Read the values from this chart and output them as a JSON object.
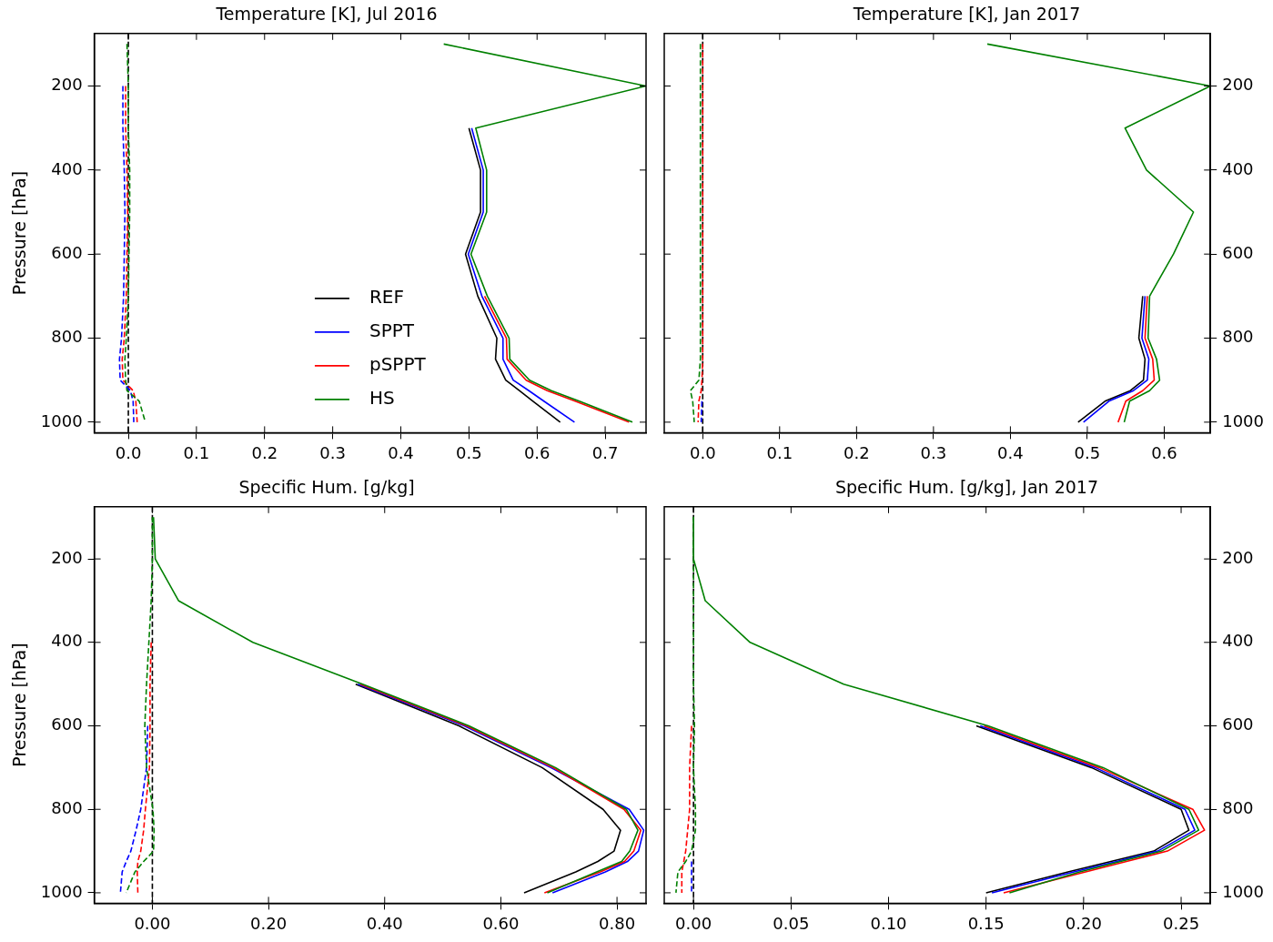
{
  "chart_data": [
    {
      "type": "line",
      "title": "Temperature [K], Jul 2016",
      "ylabel": "Pressure [hPa]",
      "xlim": [
        -0.05,
        0.76
      ],
      "xticks": [
        {
          "value": 0,
          "label": "0.0"
        },
        0.1,
        0.2,
        0.3,
        0.4,
        0.5,
        0.6,
        0.7
      ],
      "ylim": [
        1025,
        75
      ],
      "yticks": [
        200,
        400,
        600,
        800,
        1000
      ],
      "legend": "bottom",
      "ref_lines": [
        {
          "axis": "x",
          "value": 0,
          "color": "#000000",
          "line_style": "dashed"
        }
      ],
      "series": [
        {
          "name": "REF",
          "color": "#000000",
          "line_style": "solid",
          "x": [
            0.5,
            0.517,
            0.517,
            0.495,
            0.513,
            0.541,
            0.539,
            0.554,
            0.574,
            0.594,
            0.634
          ],
          "values": [
            300,
            400,
            500,
            600,
            700,
            800,
            850,
            900,
            925,
            950,
            1000
          ]
        },
        {
          "name": "SPPT",
          "color": "#0000ff",
          "line_style": "solid",
          "x": [
            0.504,
            0.521,
            0.521,
            0.499,
            0.519,
            0.55,
            0.55,
            0.565,
            0.588,
            0.61,
            0.655
          ],
          "values": [
            300,
            400,
            500,
            600,
            700,
            800,
            850,
            900,
            925,
            950,
            1000
          ]
        },
        {
          "name": "pSPPT",
          "color": "#ff0000",
          "line_style": "solid",
          "x": [
            0.523,
            0.555,
            0.556,
            0.584,
            0.615,
            0.656,
            0.735
          ],
          "values": [
            700,
            800,
            850,
            900,
            925,
            950,
            1000
          ]
        },
        {
          "name": "HS",
          "color": "#008000",
          "line_style": "solid",
          "x": [
            0.463,
            0.76,
            0.51,
            0.526,
            0.526,
            0.503,
            0.527,
            0.559,
            0.56,
            0.589,
            0.621,
            0.662,
            0.74
          ],
          "values": [
            100,
            200,
            300,
            400,
            500,
            600,
            700,
            800,
            850,
            900,
            925,
            950,
            1000
          ]
        },
        {
          "color": "#0000ff",
          "line_style": "dashed",
          "x": [
            -0.008,
            -0.008,
            -0.006,
            -0.005,
            -0.006,
            -0.007,
            -0.01,
            -0.013,
            -0.012,
            0.003,
            0.007,
            0.008
          ],
          "values": [
            200,
            300,
            400,
            500,
            600,
            700,
            800,
            850,
            900,
            925,
            950,
            1000
          ]
        },
        {
          "color": "#ff0000",
          "line_style": "dashed",
          "x": [
            -0.004,
            -0.004,
            -0.002,
            -0.001,
            -0.002,
            -0.003,
            -0.006,
            -0.009,
            -0.008,
            0.007,
            0.011,
            0.013
          ],
          "values": [
            200,
            300,
            400,
            500,
            600,
            700,
            800,
            850,
            900,
            925,
            950,
            1000
          ]
        },
        {
          "color": "#008000",
          "line_style": "dashed",
          "x": [
            -0.002,
            0,
            0,
            0.002,
            0.002,
            0.001,
            0,
            -0.003,
            -0.005,
            -0.004,
            -0.002,
            0.016,
            0.025
          ],
          "values": [
            100,
            200,
            300,
            400,
            500,
            600,
            700,
            800,
            850,
            900,
            925,
            950,
            1000
          ]
        }
      ]
    },
    {
      "type": "line",
      "title": "Temperature [K], Jan 2017",
      "xlim": [
        -0.05,
        0.66
      ],
      "xticks": [
        {
          "value": 0,
          "label": "0.0"
        },
        0.1,
        0.2,
        0.3,
        0.4,
        0.5,
        0.6
      ],
      "ylim": [
        1025,
        75
      ],
      "yticks": [
        200,
        400,
        600,
        800,
        1000
      ],
      "ref_lines": [
        {
          "axis": "x",
          "value": 0,
          "color": "#000000",
          "line_style": "dashed"
        }
      ],
      "series": [
        {
          "color": "#000000",
          "line_style": "solid",
          "x": [
            0.572,
            0.567,
            0.575,
            0.573,
            0.556,
            0.523,
            0.488
          ],
          "values": [
            700,
            800,
            850,
            900,
            925,
            950,
            1000
          ]
        },
        {
          "color": "#0000ff",
          "line_style": "solid",
          "x": [
            0.575,
            0.571,
            0.58,
            0.578,
            0.56,
            0.528,
            0.495
          ],
          "values": [
            700,
            800,
            850,
            900,
            925,
            950,
            1000
          ]
        },
        {
          "color": "#ff0000",
          "line_style": "solid",
          "x": [
            0.578,
            0.575,
            0.585,
            0.587,
            0.572,
            0.55,
            0.54
          ],
          "values": [
            700,
            800,
            850,
            900,
            925,
            950,
            1000
          ]
        },
        {
          "color": "#008000",
          "line_style": "solid",
          "x": [
            0.37,
            0.66,
            0.549,
            0.577,
            0.638,
            0.612,
            0.581,
            0.579,
            0.59,
            0.594,
            0.581,
            0.555,
            0.548
          ],
          "values": [
            100,
            200,
            300,
            400,
            500,
            600,
            700,
            800,
            850,
            900,
            925,
            950,
            1000
          ]
        },
        {
          "color": "#0000ff",
          "line_style": "dashed",
          "x": [
            -0.001,
            -0.002
          ],
          "values": [
            950,
            1000
          ]
        },
        {
          "color": "#ff0000",
          "line_style": "dashed",
          "x": [
            0,
            0,
            0,
            0,
            0,
            0,
            0,
            0,
            0,
            -0.001,
            -0.002,
            -0.005,
            -0.006
          ],
          "values": [
            100,
            200,
            300,
            400,
            500,
            600,
            700,
            800,
            850,
            900,
            925,
            950,
            1000
          ]
        },
        {
          "color": "#008000",
          "line_style": "dashed",
          "x": [
            -0.003,
            -0.003,
            -0.003,
            -0.003,
            -0.003,
            -0.003,
            -0.003,
            -0.003,
            -0.003,
            -0.005,
            -0.016,
            -0.013,
            -0.011
          ],
          "values": [
            100,
            200,
            300,
            400,
            500,
            600,
            700,
            800,
            850,
            900,
            925,
            950,
            1000
          ]
        }
      ]
    },
    {
      "type": "line",
      "title": "Specific Hum. [g/kg]",
      "ylabel": "Pressure [hPa]",
      "xlim": [
        -0.1,
        0.85
      ],
      "xticks": [
        {
          "value": 0,
          "label": "0.00"
        },
        {
          "value": 0.2,
          "label": "0.20"
        },
        {
          "value": 0.4,
          "label": "0.40"
        },
        {
          "value": 0.6,
          "label": "0.60"
        },
        {
          "value": 0.8,
          "label": "0.80"
        }
      ],
      "ylim": [
        1025,
        75
      ],
      "yticks": [
        200,
        400,
        600,
        800,
        1000
      ],
      "ref_lines": [
        {
          "axis": "x",
          "value": 0,
          "color": "#000000",
          "line_style": "dashed"
        }
      ],
      "series": [
        {
          "color": "#000000",
          "line_style": "solid",
          "x": [
            0.35,
            0.528,
            0.671,
            0.776,
            0.806,
            0.795,
            0.767,
            0.729,
            0.64
          ],
          "values": [
            500,
            600,
            700,
            800,
            850,
            900,
            925,
            950,
            1000
          ]
        },
        {
          "color": "#0000ff",
          "line_style": "solid",
          "x": [
            0.354,
            0.537,
            0.686,
            0.821,
            0.846,
            0.837,
            0.818,
            0.78,
            0.689
          ],
          "values": [
            500,
            600,
            700,
            800,
            850,
            900,
            925,
            950,
            1000
          ]
        },
        {
          "color": "#ff0000",
          "line_style": "solid",
          "x": [
            0.358,
            0.541,
            0.69,
            0.812,
            0.841,
            0.829,
            0.813,
            0.771,
            0.675
          ],
          "values": [
            500,
            600,
            700,
            800,
            850,
            900,
            925,
            950,
            1000
          ]
        },
        {
          "color": "#008000",
          "line_style": "solid",
          "x": [
            0.002,
            0.005,
            0.045,
            0.173,
            0.362,
            0.545,
            0.694,
            0.816,
            0.836,
            0.822,
            0.808,
            0.765,
            0.68
          ],
          "values": [
            100,
            200,
            300,
            400,
            500,
            600,
            700,
            800,
            850,
            900,
            925,
            950,
            1000
          ]
        },
        {
          "color": "#0000ff",
          "line_style": "dashed",
          "x": [
            -0.008,
            -0.01,
            -0.02,
            -0.028,
            -0.037,
            -0.045,
            -0.052,
            -0.055
          ],
          "values": [
            600,
            700,
            800,
            850,
            900,
            925,
            950,
            1000
          ]
        },
        {
          "color": "#ff0000",
          "line_style": "dashed",
          "x": [
            -0.002,
            -0.004,
            -0.004,
            -0.005,
            -0.012,
            -0.015,
            -0.02,
            -0.025,
            -0.026,
            -0.025
          ],
          "values": [
            400,
            500,
            600,
            700,
            800,
            850,
            900,
            925,
            950,
            1000
          ]
        },
        {
          "color": "#008000",
          "line_style": "dashed",
          "x": [
            0,
            0,
            -0.002,
            -0.006,
            -0.01,
            -0.013,
            -0.01,
            0.001,
            0.003,
            0.002,
            -0.015,
            -0.03,
            -0.045
          ],
          "values": [
            100,
            200,
            300,
            400,
            500,
            600,
            700,
            800,
            850,
            900,
            925,
            950,
            1000
          ]
        }
      ]
    },
    {
      "type": "line",
      "title": "Specific Hum. [g/kg], Jan 2017",
      "xlim": [
        -0.015,
        0.265
      ],
      "xticks": [
        {
          "value": 0,
          "label": "0.00"
        },
        0.05,
        {
          "value": 0.1,
          "label": "0.10"
        },
        0.15,
        {
          "value": 0.2,
          "label": "0.20"
        },
        0.25
      ],
      "ylim": [
        1025,
        75
      ],
      "yticks": [
        200,
        400,
        600,
        800,
        1000
      ],
      "ref_lines": [
        {
          "axis": "x",
          "value": 0,
          "color": "#000000",
          "line_style": "dashed"
        }
      ],
      "series": [
        {
          "color": "#000000",
          "line_style": "solid",
          "x": [
            0.145,
            0.204,
            0.25,
            0.254,
            0.236,
            0.214,
            0.192,
            0.15
          ],
          "values": [
            600,
            700,
            800,
            850,
            900,
            925,
            950,
            1000
          ]
        },
        {
          "color": "#0000ff",
          "line_style": "solid",
          "x": [
            0.147,
            0.206,
            0.252,
            0.257,
            0.238,
            0.217,
            0.195,
            0.153
          ],
          "values": [
            600,
            700,
            800,
            850,
            900,
            925,
            950,
            1000
          ]
        },
        {
          "color": "#ff0000",
          "line_style": "solid",
          "x": [
            0.149,
            0.208,
            0.256,
            0.262,
            0.243,
            0.222,
            0.201,
            0.159
          ],
          "values": [
            600,
            700,
            800,
            850,
            900,
            925,
            950,
            1000
          ]
        },
        {
          "color": "#008000",
          "line_style": "solid",
          "x": [
            0,
            0,
            0.006,
            0.029,
            0.077,
            0.151,
            0.21,
            0.254,
            0.259,
            0.24,
            0.219,
            0.198,
            0.162
          ],
          "values": [
            100,
            200,
            300,
            400,
            500,
            600,
            700,
            800,
            850,
            900,
            925,
            950,
            1000
          ]
        },
        {
          "color": "#0000ff",
          "line_style": "dashed",
          "x": [
            -0.001,
            -0.001,
            -0.001
          ],
          "values": [
            925,
            950,
            1000
          ]
        },
        {
          "color": "#ff0000",
          "line_style": "dashed",
          "x": [
            -0.001,
            -0.002,
            -0.002,
            -0.003,
            -0.004,
            -0.005,
            -0.006,
            -0.006
          ],
          "values": [
            600,
            700,
            800,
            850,
            900,
            925,
            950,
            1000
          ]
        },
        {
          "color": "#008000",
          "line_style": "dashed",
          "x": [
            0,
            0,
            0,
            0,
            0,
            0.0005,
            0,
            0.001,
            0.001,
            -0.001,
            -0.004,
            -0.008,
            -0.009
          ],
          "values": [
            100,
            200,
            300,
            400,
            500,
            600,
            700,
            800,
            850,
            900,
            925,
            950,
            1000
          ]
        }
      ]
    }
  ]
}
